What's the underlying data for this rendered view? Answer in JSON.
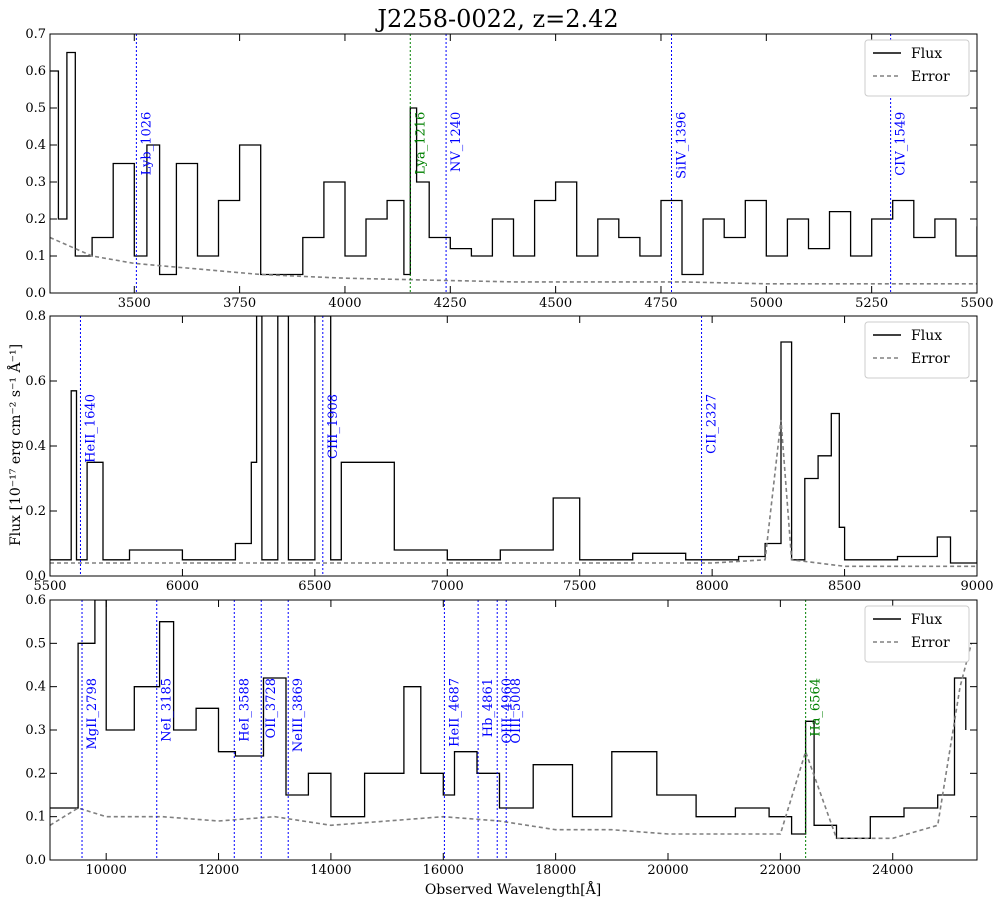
{
  "title": "J2258-0022, z=2.42",
  "xlabel": "Observed Wavelength[Å]",
  "ylabel": "Flux [10⁻¹⁷ erg cm⁻² s⁻¹ Å⁻¹]",
  "colors": {
    "flux": "#000000",
    "error": "#808080",
    "blue_line": "#0000ff",
    "green_line": "#008000"
  },
  "chart_data": [
    {
      "type": "line",
      "xlim": [
        3300,
        5500
      ],
      "ylim": [
        0,
        0.7
      ],
      "xticks": [
        3500,
        3750,
        4000,
        4250,
        4500,
        4750,
        5000,
        5250,
        5500
      ],
      "xtick_labels": [
        "3500",
        "3750",
        "4000",
        "4250",
        "4500",
        "4750",
        "5000",
        "5250",
        "5500"
      ],
      "yticks": [
        0,
        0.1,
        0.2,
        0.3,
        0.4,
        0.5,
        0.6,
        0.7
      ],
      "ytick_labels": [
        "0.0",
        "0.1",
        "0.2",
        "0.3",
        "0.4",
        "0.5",
        "0.6",
        "0.7"
      ],
      "legend": {
        "position": "top-right",
        "entries": [
          "Flux",
          "Error"
        ]
      },
      "series": [
        {
          "name": "Flux",
          "x": [
            3300,
            3320,
            3340,
            3360,
            3400,
            3450,
            3500,
            3530,
            3560,
            3600,
            3650,
            3700,
            3750,
            3800,
            3850,
            3900,
            3950,
            4000,
            4050,
            4100,
            4140,
            4155,
            4170,
            4200,
            4250,
            4300,
            4350,
            4400,
            4450,
            4500,
            4550,
            4600,
            4650,
            4700,
            4750,
            4800,
            4850,
            4900,
            4950,
            5000,
            5050,
            5100,
            5150,
            5200,
            5250,
            5300,
            5350,
            5400,
            5450,
            5500
          ],
          "y": [
            0.6,
            0.2,
            0.65,
            0.1,
            0.15,
            0.35,
            0.1,
            0.4,
            0.05,
            0.35,
            0.1,
            0.25,
            0.4,
            0.05,
            0.05,
            0.15,
            0.3,
            0.1,
            0.2,
            0.25,
            0.05,
            0.5,
            0.3,
            0.15,
            0.12,
            0.1,
            0.2,
            0.1,
            0.25,
            0.3,
            0.1,
            0.2,
            0.15,
            0.1,
            0.25,
            0.05,
            0.2,
            0.15,
            0.25,
            0.1,
            0.2,
            0.12,
            0.22,
            0.1,
            0.2,
            0.25,
            0.15,
            0.2,
            0.1,
            0.18
          ]
        },
        {
          "name": "Error",
          "x": [
            3300,
            3400,
            3500,
            3600,
            3700,
            3800,
            3900,
            4000,
            4200,
            4400,
            4600,
            4800,
            5000,
            5200,
            5400,
            5500
          ],
          "y": [
            0.15,
            0.1,
            0.08,
            0.07,
            0.06,
            0.05,
            0.045,
            0.04,
            0.035,
            0.03,
            0.03,
            0.03,
            0.025,
            0.025,
            0.025,
            0.025
          ]
        }
      ],
      "lines": [
        {
          "label": "Lyb_1026",
          "x": 3505,
          "color": "blue"
        },
        {
          "label": "Lya_1216",
          "x": 4155,
          "color": "green"
        },
        {
          "label": "NV_1240",
          "x": 4240,
          "color": "blue"
        },
        {
          "label": "SiIV_1396",
          "x": 4775,
          "color": "blue"
        },
        {
          "label": "CIV_1549",
          "x": 5295,
          "color": "blue"
        }
      ]
    },
    {
      "type": "line",
      "xlim": [
        5500,
        9000
      ],
      "ylim": [
        0,
        0.8
      ],
      "xticks": [
        5500,
        6000,
        6500,
        7000,
        7500,
        8000,
        8500,
        9000
      ],
      "xtick_labels": [
        "5500",
        "6000",
        "6500",
        "7000",
        "7500",
        "8000",
        "8500",
        "9000"
      ],
      "yticks": [
        0,
        0.2,
        0.4,
        0.6,
        0.8
      ],
      "ytick_labels": [
        "0.0",
        "0.2",
        "0.4",
        "0.6",
        "0.8"
      ],
      "legend": {
        "position": "top-right",
        "entries": [
          "Flux",
          "Error"
        ]
      },
      "series": [
        {
          "name": "Flux",
          "x": [
            5500,
            5580,
            5600,
            5640,
            5700,
            5800,
            6000,
            6200,
            6260,
            6280,
            6300,
            6360,
            6400,
            6500,
            6560,
            6600,
            6800,
            7000,
            7200,
            7400,
            7500,
            7700,
            7900,
            8100,
            8200,
            8260,
            8300,
            8350,
            8400,
            8450,
            8480,
            8500,
            8700,
            8850,
            8900,
            9000
          ],
          "y": [
            0.05,
            0.57,
            0.05,
            0.35,
            0.05,
            0.08,
            0.05,
            0.1,
            0.35,
            0.8,
            0.05,
            0.8,
            0.05,
            0.8,
            0.05,
            0.35,
            0.08,
            0.05,
            0.08,
            0.24,
            0.05,
            0.07,
            0.05,
            0.06,
            0.1,
            0.72,
            0.05,
            0.3,
            0.37,
            0.5,
            0.15,
            0.05,
            0.06,
            0.12,
            0.04,
            0.08
          ]
        },
        {
          "name": "Error",
          "x": [
            5500,
            6000,
            6500,
            7000,
            7500,
            8000,
            8200,
            8260,
            8300,
            8500,
            9000
          ],
          "y": [
            0.04,
            0.04,
            0.04,
            0.04,
            0.04,
            0.04,
            0.05,
            0.48,
            0.05,
            0.03,
            0.03
          ]
        }
      ],
      "lines": [
        {
          "label": "HeII_1640",
          "x": 5615,
          "color": "blue"
        },
        {
          "label": "CIII_1908",
          "x": 6530,
          "color": "blue"
        },
        {
          "label": "CII_2327",
          "x": 7960,
          "color": "blue"
        }
      ]
    },
    {
      "type": "line",
      "xlim": [
        9000,
        25500
      ],
      "ylim": [
        0,
        0.6
      ],
      "xticks": [
        10000,
        12000,
        14000,
        16000,
        18000,
        20000,
        22000,
        24000
      ],
      "xtick_labels": [
        "10000",
        "12000",
        "14000",
        "16000",
        "18000",
        "20000",
        "22000",
        "24000"
      ],
      "yticks": [
        0,
        0.1,
        0.2,
        0.3,
        0.4,
        0.5,
        0.6
      ],
      "ytick_labels": [
        "0.0",
        "0.1",
        "0.2",
        "0.3",
        "0.4",
        "0.5",
        "0.6"
      ],
      "legend": {
        "position": "top-right",
        "entries": [
          "Flux",
          "Error"
        ]
      },
      "series": [
        {
          "name": "Flux",
          "x": [
            9000,
            9500,
            9800,
            10000,
            10500,
            10950,
            11200,
            11600,
            12000,
            12300,
            12800,
            13200,
            13600,
            14000,
            14600,
            15300,
            15600,
            16000,
            16200,
            16600,
            17000,
            17600,
            18300,
            19000,
            19800,
            20500,
            21200,
            21800,
            22200,
            22450,
            22600,
            23000,
            23600,
            24200,
            24800,
            25100,
            25300
          ],
          "y": [
            0.12,
            0.5,
            0.6,
            0.3,
            0.4,
            0.55,
            0.3,
            0.35,
            0.25,
            0.24,
            0.42,
            0.15,
            0.2,
            0.1,
            0.2,
            0.4,
            0.2,
            0.15,
            0.25,
            0.2,
            0.12,
            0.22,
            0.1,
            0.25,
            0.15,
            0.1,
            0.12,
            0.1,
            0.06,
            0.32,
            0.08,
            0.05,
            0.1,
            0.12,
            0.15,
            0.42,
            0.3
          ]
        },
        {
          "name": "Error",
          "x": [
            9000,
            9500,
            10000,
            11000,
            12000,
            13000,
            14000,
            15000,
            16000,
            17000,
            18000,
            19000,
            20000,
            21000,
            22000,
            22450,
            23000,
            24000,
            24800,
            25200,
            25400
          ],
          "y": [
            0.08,
            0.12,
            0.1,
            0.1,
            0.09,
            0.1,
            0.08,
            0.09,
            0.1,
            0.09,
            0.07,
            0.07,
            0.06,
            0.06,
            0.06,
            0.25,
            0.05,
            0.05,
            0.08,
            0.4,
            0.5
          ]
        }
      ],
      "lines": [
        {
          "label": "MgII_2798",
          "x": 9570,
          "color": "blue"
        },
        {
          "label": "NeI_3185",
          "x": 10900,
          "color": "blue"
        },
        {
          "label": "HeI_3588",
          "x": 12280,
          "color": "blue"
        },
        {
          "label": "OII_3728",
          "x": 12760,
          "color": "blue"
        },
        {
          "label": "NeIII_3869",
          "x": 13240,
          "color": "blue"
        },
        {
          "label": "HeII_4687",
          "x": 16020,
          "color": "blue"
        },
        {
          "label": "Hb_4861",
          "x": 16620,
          "color": "blue"
        },
        {
          "label": "OIII_4960",
          "x": 16960,
          "color": "blue"
        },
        {
          "label": "OIII_5008",
          "x": 17120,
          "color": "blue"
        },
        {
          "label": "Ha_6564",
          "x": 22450,
          "color": "green"
        }
      ]
    }
  ]
}
